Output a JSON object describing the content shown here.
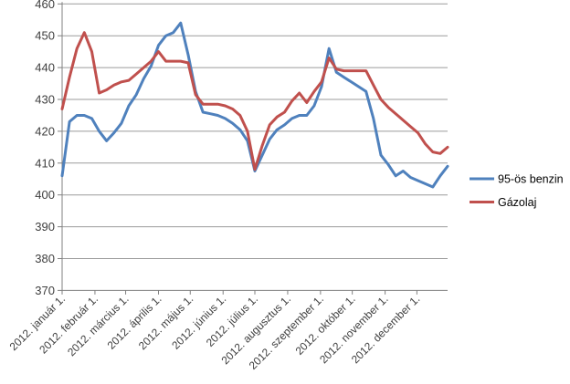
{
  "chart_data": {
    "type": "line",
    "title": "",
    "xlabel": "",
    "ylabel": "",
    "ylim": [
      370,
      460
    ],
    "y_ticks": [
      370,
      380,
      390,
      400,
      410,
      420,
      430,
      440,
      450,
      460
    ],
    "x_tick_labels": [
      "2012. január 1.",
      "2012. február 1.",
      "2012. március 1.",
      "2012. április 1.",
      "2012. május 1.",
      "2012. június 1.",
      "2012. július 1.",
      "2012. augusztus 1.",
      "2012. szeptember 1.",
      "2012. október 1.",
      "2012. november 1.",
      "2012. december 1."
    ],
    "x_unit": "week (53 weekly points, Jan 1 – Dec 30 2012)",
    "grid": "horizontal",
    "legend_position": "right",
    "series": [
      {
        "name": "95-ös benzin",
        "color": "#4F81BD",
        "values": [
          406,
          423,
          425,
          425,
          424,
          420,
          417,
          419.5,
          422.5,
          428,
          431.5,
          436.5,
          440.5,
          447,
          450,
          451,
          454,
          444,
          432.5,
          426,
          425.5,
          425,
          424,
          422.5,
          420.5,
          417,
          407.5,
          412.5,
          417.5,
          420.5,
          422,
          424,
          425,
          425,
          428,
          434,
          446,
          438.5,
          437,
          435.5,
          434,
          432.5,
          424,
          412.5,
          409.5,
          406,
          407.5,
          405.5,
          404.5,
          403.5,
          402.5,
          406,
          409
        ]
      },
      {
        "name": "Gázolaj",
        "color": "#C0504D",
        "values": [
          427,
          437,
          446,
          451,
          445,
          432,
          433,
          434.5,
          435.5,
          436,
          438,
          440,
          442,
          445,
          442,
          442,
          442,
          441.5,
          431.5,
          428.5,
          428.5,
          428.5,
          428,
          427,
          425,
          420,
          408,
          415.5,
          422,
          424.5,
          426,
          429.5,
          432,
          429,
          432.5,
          435.5,
          443,
          439.5,
          439,
          439,
          439,
          439,
          434.5,
          430,
          427.5,
          425.5,
          423.5,
          421.5,
          419.5,
          416,
          413.5,
          413,
          415
        ]
      }
    ]
  },
  "colors": {
    "background": "#ffffff",
    "gridline": "#9b9b9b",
    "axis": "#808080",
    "label": "#3f3f3f"
  }
}
